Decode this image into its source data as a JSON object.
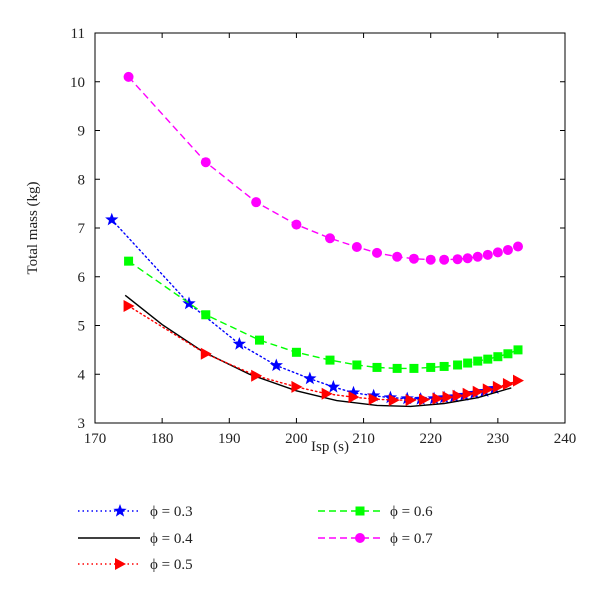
{
  "chart_data": {
    "type": "line",
    "xlabel": "Isp (s)",
    "ylabel": "Total mass (kg)",
    "xlim": [
      170,
      240
    ],
    "ylim": [
      3,
      11
    ],
    "xticks": [
      170,
      180,
      190,
      200,
      210,
      220,
      230,
      240
    ],
    "yticks": [
      3,
      4,
      5,
      6,
      7,
      8,
      9,
      10,
      11
    ],
    "grid": false,
    "legend_placement": "below",
    "series": [
      {
        "name": "ϕ = 0.3",
        "color": "#0000ff",
        "line_style": "dotted",
        "marker": "star",
        "x": [
          172.5,
          184,
          191.5,
          197,
          202,
          205.5,
          208.5,
          211.5,
          214,
          216.5,
          218.5,
          220.5,
          222,
          223.5,
          225,
          226.5,
          228,
          229.5
        ],
        "y": [
          7.17,
          5.45,
          4.62,
          4.18,
          3.91,
          3.74,
          3.62,
          3.56,
          3.52,
          3.5,
          3.49,
          3.5,
          3.52,
          3.54,
          3.57,
          3.61,
          3.65,
          3.71
        ]
      },
      {
        "name": "ϕ = 0.4",
        "color": "#000000",
        "line_style": "solid",
        "marker": "none",
        "x": [
          174.5,
          180,
          186,
          193,
          200,
          206,
          212,
          217,
          222,
          227,
          232
        ],
        "y": [
          5.62,
          5.02,
          4.47,
          4.0,
          3.66,
          3.46,
          3.36,
          3.34,
          3.4,
          3.52,
          3.72
        ]
      },
      {
        "name": "ϕ = 0.5",
        "color": "#ff0000",
        "line_style": "dotted",
        "marker": "triangle-right",
        "x": [
          175,
          186.5,
          194,
          200,
          204.5,
          208.5,
          211.5,
          214.5,
          217,
          219,
          221,
          222.5,
          224,
          225.5,
          227,
          228.5,
          230,
          231.5,
          233
        ],
        "y": [
          5.4,
          4.42,
          3.97,
          3.74,
          3.6,
          3.53,
          3.49,
          3.47,
          3.47,
          3.48,
          3.5,
          3.53,
          3.56,
          3.6,
          3.64,
          3.69,
          3.74,
          3.8,
          3.87
        ]
      },
      {
        "name": "ϕ = 0.6",
        "color": "#00ff00",
        "line_style": "dashed",
        "marker": "square",
        "x": [
          175,
          186.5,
          194.5,
          200,
          205,
          209,
          212,
          215,
          217.5,
          220,
          222,
          224,
          225.5,
          227,
          228.5,
          230,
          231.5,
          233
        ],
        "y": [
          6.32,
          5.22,
          4.7,
          4.45,
          4.29,
          4.19,
          4.14,
          4.12,
          4.12,
          4.14,
          4.16,
          4.19,
          4.23,
          4.27,
          4.31,
          4.36,
          4.42,
          4.5
        ]
      },
      {
        "name": "ϕ = 0.7",
        "color": "#ff00ff",
        "line_style": "dashed",
        "marker": "circle",
        "x": [
          175,
          186.5,
          194,
          200,
          205,
          209,
          212,
          215,
          217.5,
          220,
          222,
          224,
          225.5,
          227,
          228.5,
          230,
          231.5,
          233
        ],
        "y": [
          10.1,
          8.35,
          7.53,
          7.07,
          6.79,
          6.61,
          6.49,
          6.41,
          6.37,
          6.35,
          6.35,
          6.36,
          6.38,
          6.41,
          6.45,
          6.5,
          6.55,
          6.62
        ]
      }
    ]
  }
}
